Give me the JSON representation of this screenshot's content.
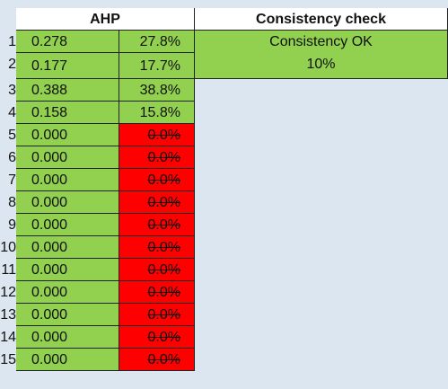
{
  "headers": {
    "ahp": "AHP",
    "consistency": "Consistency check"
  },
  "consistency": {
    "status": "Consistency OK",
    "value": "10%"
  },
  "rows": [
    {
      "index": "1",
      "weight": "0.278",
      "percent": "27.8%"
    },
    {
      "index": "2",
      "weight": "0.177",
      "percent": "17.7%"
    },
    {
      "index": "3",
      "weight": "0.388",
      "percent": "38.8%"
    },
    {
      "index": "4",
      "weight": "0.158",
      "percent": "15.8%"
    },
    {
      "index": "5",
      "weight": "0.000",
      "percent": "0.0%"
    },
    {
      "index": "6",
      "weight": "0.000",
      "percent": "0.0%"
    },
    {
      "index": "7",
      "weight": "0.000",
      "percent": "0.0%"
    },
    {
      "index": "8",
      "weight": "0.000",
      "percent": "0.0%"
    },
    {
      "index": "9",
      "weight": "0.000",
      "percent": "0.0%"
    },
    {
      "index": "10",
      "weight": "0.000",
      "percent": "0.0%"
    },
    {
      "index": "11",
      "weight": "0.000",
      "percent": "0.0%"
    },
    {
      "index": "12",
      "weight": "0.000",
      "percent": "0.0%"
    },
    {
      "index": "13",
      "weight": "0.000",
      "percent": "0.0%"
    },
    {
      "index": "14",
      "weight": "0.000",
      "percent": "0.0%"
    },
    {
      "index": "15",
      "weight": "0.000",
      "percent": "0.0%"
    }
  ],
  "colors": {
    "green": "#92d050",
    "red": "#ff0000",
    "background": "#dce6f0"
  }
}
